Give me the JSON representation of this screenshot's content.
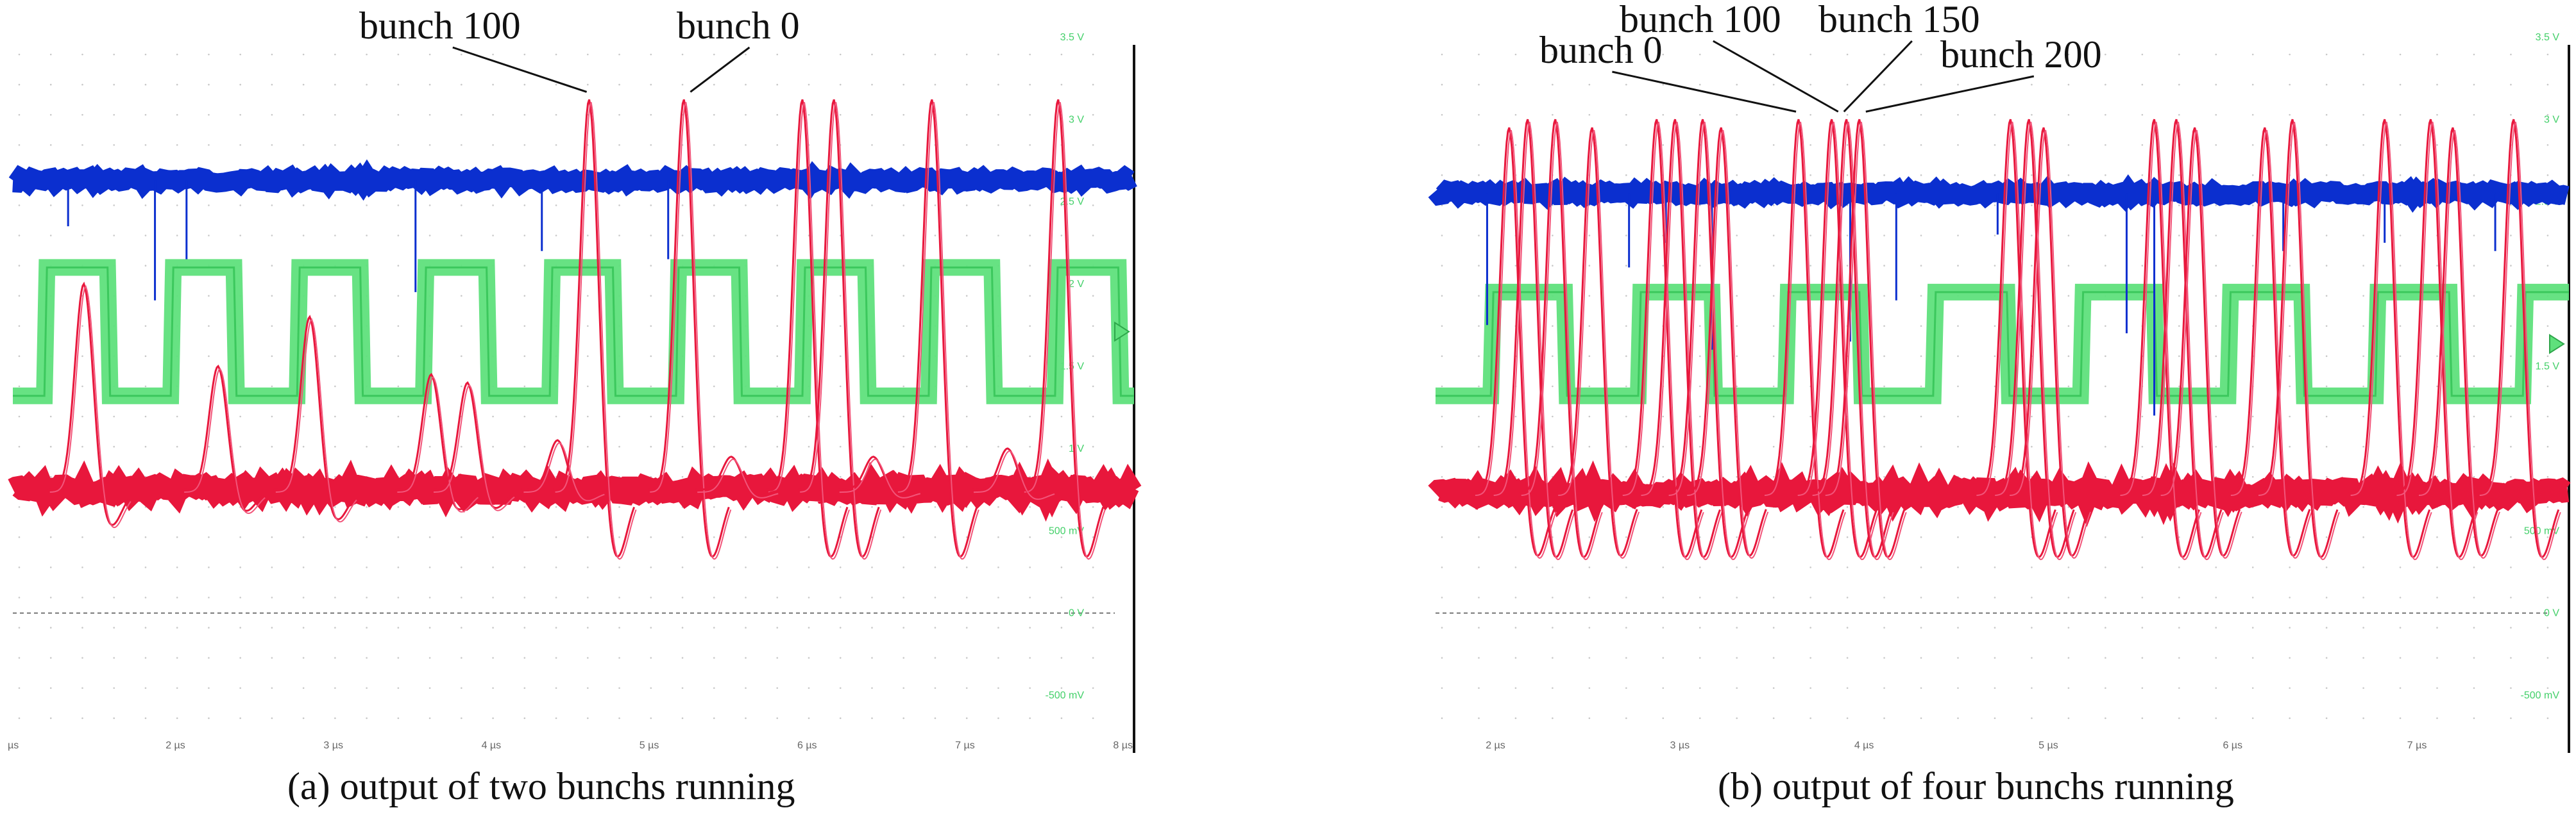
{
  "chart_data": [
    {
      "type": "line",
      "panel": "a",
      "caption": "(a) output of two bunchs running",
      "x_unit": "µs",
      "x_ticks": [
        1,
        2,
        3,
        4,
        5,
        6,
        7,
        8
      ],
      "x_tick_labels": [
        "µs",
        "2 µs",
        "3 µs",
        "4 µs",
        "5 µs",
        "6 µs",
        "7 µs",
        "8 µs"
      ],
      "xlim": [
        1,
        8.1
      ],
      "y_unit": "V",
      "y_ticks": [
        3.5,
        3,
        2.5,
        2,
        1.5,
        1,
        0.5,
        0,
        -0.5
      ],
      "y_tick_labels": [
        "3.5 V",
        "3 V",
        "2.5 V",
        "2 V",
        "1.5 V",
        "1 V",
        "500 mV",
        "0 V",
        "-500 mV"
      ],
      "ylim": [
        -0.85,
        3.55
      ],
      "zero_reference": 0,
      "annotations": [
        {
          "text": "bunch 100",
          "x": 4.65,
          "y": 3.12
        },
        {
          "text": "bunch 0",
          "x": 5.25,
          "y": 3.12
        }
      ],
      "series": [
        {
          "color": "#0b2fcf",
          "baseline": 2.63,
          "dips": [
            {
              "x": 1.35,
              "y": 2.35
            },
            {
              "x": 1.9,
              "y": 1.9
            },
            {
              "x": 2.1,
              "y": 2.15
            },
            {
              "x": 3.55,
              "y": 1.95
            },
            {
              "x": 4.35,
              "y": 2.2
            },
            {
              "x": 5.15,
              "y": 2.15
            }
          ]
        },
        {
          "color": "#5fe07c",
          "low": 1.32,
          "high": 2.1,
          "period": 0.8,
          "first_rise": 1.2,
          "duty": 0.5
        },
        {
          "color": "#e8173c",
          "baseline": 0.75,
          "pulses": [
            {
              "x": 1.45,
              "y": 2.0
            },
            {
              "x": 2.3,
              "y": 1.5
            },
            {
              "x": 2.88,
              "y": 1.8
            },
            {
              "x": 3.65,
              "y": 1.45
            },
            {
              "x": 3.88,
              "y": 1.4
            },
            {
              "x": 4.45,
              "y": 1.05
            },
            {
              "x": 4.65,
              "y": 3.12
            },
            {
              "x": 5.25,
              "y": 3.12
            },
            {
              "x": 6.0,
              "y": 3.12
            },
            {
              "x": 6.2,
              "y": 3.12
            },
            {
              "x": 6.82,
              "y": 3.12
            },
            {
              "x": 7.62,
              "y": 3.12
            },
            {
              "x": 5.55,
              "y": 0.95
            },
            {
              "x": 6.45,
              "y": 0.95
            },
            {
              "x": 7.3,
              "y": 1.0
            }
          ]
        }
      ]
    },
    {
      "type": "line",
      "panel": "b",
      "caption": "(b) output of four bunchs running",
      "x_unit": "µs",
      "x_ticks": [
        2,
        3,
        4,
        5,
        6,
        7
      ],
      "x_tick_labels": [
        "2 µs",
        "3 µs",
        "4 µs",
        "5 µs",
        "6 µs",
        "7 µs"
      ],
      "xlim": [
        1.7,
        7.85
      ],
      "y_unit": "V",
      "y_ticks": [
        3.5,
        3,
        2.5,
        1.5,
        0.5,
        0,
        -0.5
      ],
      "y_tick_labels": [
        "3.5 V",
        "3 V",
        "2.5 V",
        "1.5 V",
        "500 mV",
        "0 V",
        "-500 mV"
      ],
      "ylim": [
        -0.85,
        3.55
      ],
      "zero_reference": 0,
      "annotations": [
        {
          "text": "bunch 0",
          "x": 3.67,
          "y": 3.0
        },
        {
          "text": "bunch 100",
          "x": 3.85,
          "y": 3.0
        },
        {
          "text": "bunch 150",
          "x": 3.93,
          "y": 3.0
        },
        {
          "text": "bunch 200",
          "x": 4.0,
          "y": 3.0
        }
      ],
      "series": [
        {
          "color": "#0b2fcf",
          "baseline": 2.55,
          "dips": [
            {
              "x": 1.98,
              "y": 1.75
            },
            {
              "x": 2.75,
              "y": 2.1
            },
            {
              "x": 2.95,
              "y": 2.25
            },
            {
              "x": 3.2,
              "y": 1.6
            },
            {
              "x": 3.95,
              "y": 1.65
            },
            {
              "x": 4.2,
              "y": 1.9
            },
            {
              "x": 4.75,
              "y": 2.3
            },
            {
              "x": 5.45,
              "y": 1.7
            },
            {
              "x": 5.6,
              "y": 1.2
            },
            {
              "x": 6.3,
              "y": 2.2
            },
            {
              "x": 6.85,
              "y": 2.25
            },
            {
              "x": 7.45,
              "y": 2.2
            }
          ]
        },
        {
          "color": "#5fe07c",
          "low": 1.32,
          "high": 1.95,
          "period": 0.8,
          "first_rise": 2.0,
          "duty": 0.5
        },
        {
          "color": "#e8173c",
          "baseline": 0.73,
          "pulses": [
            {
              "x": 2.1,
              "y": 2.95
            },
            {
              "x": 2.2,
              "y": 3.0
            },
            {
              "x": 2.35,
              "y": 3.0
            },
            {
              "x": 2.55,
              "y": 2.95
            },
            {
              "x": 2.9,
              "y": 3.0
            },
            {
              "x": 3.0,
              "y": 3.0
            },
            {
              "x": 3.15,
              "y": 3.0
            },
            {
              "x": 3.25,
              "y": 2.95
            },
            {
              "x": 3.67,
              "y": 3.0
            },
            {
              "x": 3.85,
              "y": 3.0
            },
            {
              "x": 3.93,
              "y": 3.0
            },
            {
              "x": 4.0,
              "y": 3.0
            },
            {
              "x": 4.82,
              "y": 3.0
            },
            {
              "x": 4.92,
              "y": 3.0
            },
            {
              "x": 5.0,
              "y": 2.95
            },
            {
              "x": 5.6,
              "y": 3.0
            },
            {
              "x": 5.72,
              "y": 3.0
            },
            {
              "x": 5.82,
              "y": 2.95
            },
            {
              "x": 6.2,
              "y": 2.95
            },
            {
              "x": 6.35,
              "y": 3.0
            },
            {
              "x": 6.85,
              "y": 3.0
            },
            {
              "x": 7.1,
              "y": 3.0
            },
            {
              "x": 7.22,
              "y": 2.95
            },
            {
              "x": 7.55,
              "y": 3.0
            }
          ]
        }
      ]
    }
  ]
}
